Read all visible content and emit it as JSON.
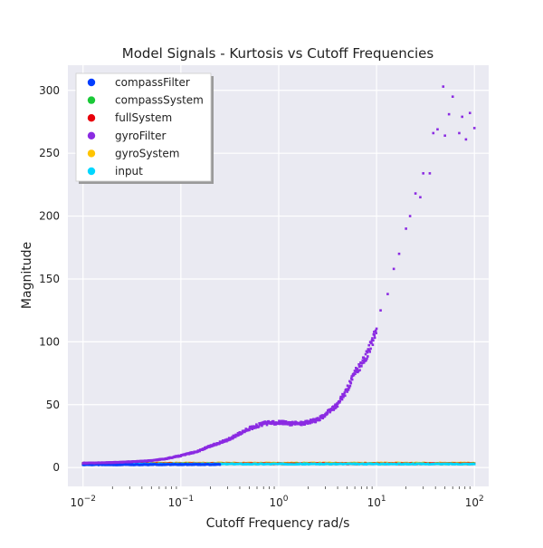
{
  "chart_data": {
    "type": "scatter",
    "title": "Model Signals - Kurtosis vs Cutoff Frequencies",
    "xlabel": "Cutoff Frequency rad/s",
    "ylabel": "Magnitude",
    "xscale": "log",
    "xlim": [
      0.007,
      140
    ],
    "ylim": [
      -15,
      320
    ],
    "xticks": [
      0.01,
      0.1,
      1,
      10,
      100
    ],
    "xtick_labels": [
      {
        "base": "10",
        "exp": "−2"
      },
      {
        "base": "10",
        "exp": "−1"
      },
      {
        "base": "10",
        "exp": "0"
      },
      {
        "base": "10",
        "exp": "1"
      },
      {
        "base": "10",
        "exp": "2"
      }
    ],
    "yticks": [
      0,
      50,
      100,
      150,
      200,
      250,
      300
    ],
    "ytick_labels": [
      "0",
      "50",
      "100",
      "150",
      "200",
      "250",
      "300"
    ],
    "grid": true,
    "legend_position": "top-left",
    "colors": {
      "background": "#eaeaf2",
      "grid": "#ffffff",
      "compassFilter": "#023eff",
      "compassSystem": "#1ac938",
      "fullSystem": "#e8000b",
      "gyroFilter": "#8b2be2",
      "gyroSystem": "#ffc400",
      "input": "#00d7ff"
    },
    "series": [
      {
        "name": "compassFilter",
        "key": "compassFilter",
        "x": [
          0.01,
          0.03,
          0.1,
          0.25
        ],
        "y": [
          2.3,
          2.3,
          2.4,
          2.4
        ]
      },
      {
        "name": "compassSystem",
        "key": "compassSystem",
        "x": [
          0.01,
          1,
          100
        ],
        "y": [
          3.0,
          3.0,
          3.0
        ]
      },
      {
        "name": "fullSystem",
        "key": "fullSystem",
        "x": [
          0.01,
          1,
          100
        ],
        "y": [
          3.0,
          3.0,
          3.0
        ]
      },
      {
        "name": "gyroFilter",
        "key": "gyroFilter",
        "x": [
          0.01,
          0.02,
          0.03,
          0.05,
          0.07,
          0.1,
          0.15,
          0.2,
          0.3,
          0.4,
          0.5,
          0.7,
          1.0,
          1.3,
          1.6,
          2.0,
          2.5,
          3.0,
          4.0,
          5.0,
          6.0,
          7.0,
          8.0,
          9.0,
          10.0,
          11.0,
          13.0,
          15.0,
          17.0,
          20.0,
          22.0,
          25.0,
          28.0,
          30.0,
          35.0,
          38.0,
          42.0,
          48.0,
          50.0,
          55.0,
          60.0,
          70.0,
          75.0,
          82.0,
          90.0,
          100.0
        ],
        "y": [
          3.5,
          4.0,
          4.5,
          5.5,
          7.0,
          9.5,
          13.0,
          17.0,
          22.0,
          27.0,
          31.0,
          35.0,
          36.0,
          35.0,
          35.0,
          36.0,
          38.0,
          42.0,
          50.0,
          62.0,
          75.0,
          82.0,
          90.0,
          100.0,
          110.0,
          125.0,
          138.0,
          158.0,
          170.0,
          190.0,
          200.0,
          218.0,
          215.0,
          234.0,
          234.0,
          266.0,
          269.0,
          303.0,
          264.0,
          281.0,
          295.0,
          266.0,
          279.0,
          261.0,
          282.0,
          270.0
        ]
      },
      {
        "name": "gyroSystem",
        "key": "gyroSystem",
        "x": [
          0.01,
          1,
          100
        ],
        "y": [
          3.5,
          3.5,
          3.5
        ]
      },
      {
        "name": "input",
        "key": "input",
        "x": [
          0.01,
          1,
          100
        ],
        "y": [
          2.8,
          2.8,
          2.8
        ]
      }
    ]
  }
}
